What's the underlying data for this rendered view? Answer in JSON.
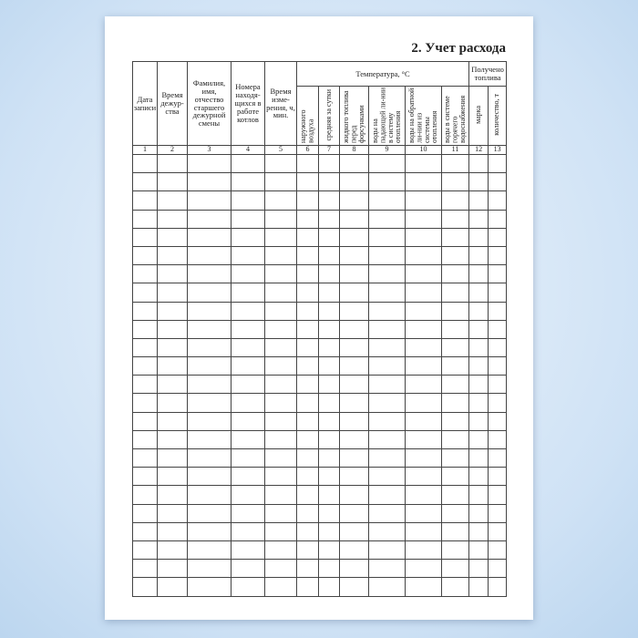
{
  "title": "2. Учет расхода",
  "headers": {
    "c1": "Дата записи",
    "c2": "Время дежур-ства",
    "c3": "Фамилия, имя, отчество старшего дежурной смены",
    "c4": "Номера находя-щихся в работе котлов",
    "c5": "Время изме-рения, ч, мин.",
    "temperature": "Температура, °С",
    "fuel": "Получено топлива",
    "c6": "наружного воздуха",
    "c7": "средняя за сутки",
    "c8": "жидкого топлива перед форсунками",
    "c9": "воды на падающей ли-нии в систему отопления",
    "c10": "воды на обратной ли-нии из системы отопления",
    "c11": "воды в системе горячего водоснабжения",
    "c12": "марка",
    "c13": "количество, т"
  },
  "column_numbers": [
    "1",
    "2",
    "3",
    "4",
    "5",
    "6",
    "7",
    "8",
    "9",
    "10",
    "11",
    "12",
    "13"
  ],
  "empty_rows": 24
}
